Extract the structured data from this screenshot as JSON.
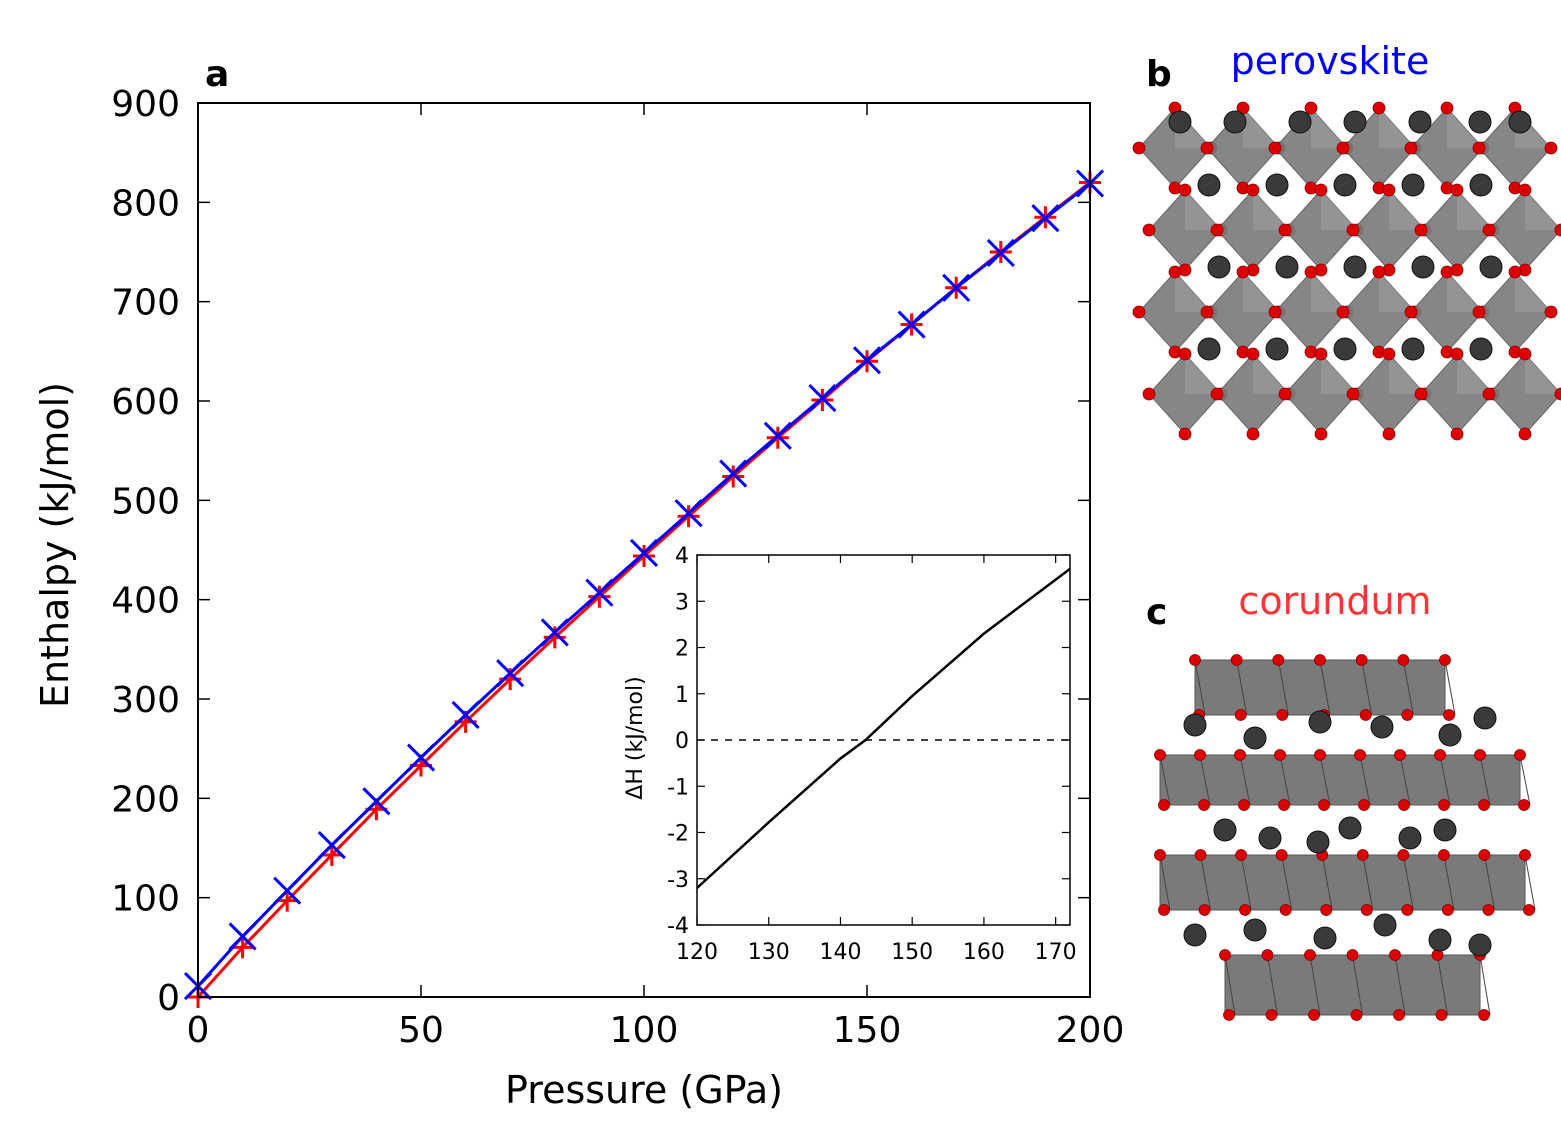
{
  "chart_data": [
    {
      "id": "main",
      "type": "line",
      "panel_label": "a",
      "xlabel": "Pressure (GPa)",
      "ylabel": "Enthalpy (kJ/mol)",
      "xlim": [
        0,
        200
      ],
      "ylim": [
        0,
        900
      ],
      "xticks": [
        0,
        50,
        100,
        150,
        200
      ],
      "yticks": [
        0,
        100,
        200,
        300,
        400,
        500,
        600,
        700,
        800,
        900
      ],
      "x": [
        0,
        10,
        20,
        30,
        40,
        50,
        60,
        70,
        80,
        90,
        100,
        110,
        120,
        130,
        140,
        150,
        160,
        170,
        180,
        190,
        200
      ],
      "series": [
        {
          "name": "corundum",
          "color": "#ff0000",
          "marker": "plus",
          "values": [
            0,
            50,
            97,
            143,
            189,
            233,
            277,
            320,
            362,
            403,
            444,
            484,
            524,
            563,
            601,
            640,
            677,
            714,
            750,
            785,
            820
          ]
        },
        {
          "name": "perovskite",
          "color": "#0000ff",
          "marker": "x",
          "values": [
            11,
            61,
            107,
            153,
            197,
            241,
            284,
            326,
            367,
            407,
            447,
            487,
            527,
            565,
            603,
            641,
            677,
            714,
            749,
            784,
            819
          ]
        }
      ]
    },
    {
      "id": "inset",
      "type": "line",
      "xlabel": "",
      "ylabel": "ΔH (kJ/mol)",
      "xlim": [
        120,
        172
      ],
      "ylim": [
        -4,
        4
      ],
      "xticks": [
        120,
        130,
        140,
        150,
        160,
        170
      ],
      "yticks": [
        -4,
        -3,
        -2,
        -1,
        0,
        1,
        2,
        3,
        4
      ],
      "series": [
        {
          "name": "ΔH",
          "color": "#000000",
          "style": "solid",
          "x": [
            120,
            130,
            140,
            143.5,
            150,
            160,
            172
          ],
          "values": [
            -3.2,
            -1.78,
            -0.4,
            0,
            0.95,
            2.3,
            3.7
          ]
        },
        {
          "name": "zero",
          "color": "#000000",
          "style": "dashed",
          "x": [
            120,
            172
          ],
          "values": [
            0,
            0
          ]
        }
      ]
    }
  ],
  "panels": {
    "b": {
      "letter": "b",
      "title": "perovskite",
      "title_color": "#0000ff"
    },
    "c": {
      "letter": "c",
      "title": "corundum",
      "title_color": "#ff3333"
    }
  },
  "colors": {
    "oxygen": "#dd0000",
    "cation": "#3a3a3a",
    "polyhedron": "#7a7a7a"
  }
}
